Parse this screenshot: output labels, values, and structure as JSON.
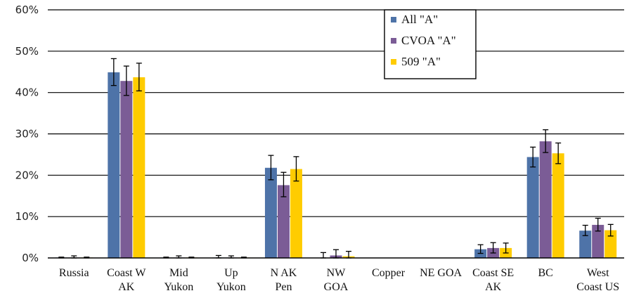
{
  "chart_data": {
    "type": "bar",
    "categories": [
      [
        "Russia"
      ],
      [
        "Coast W",
        "AK"
      ],
      [
        "Mid",
        "Yukon"
      ],
      [
        "Up",
        "Yukon"
      ],
      [
        "N AK",
        "Pen"
      ],
      [
        "NW",
        "GOA"
      ],
      [
        "Copper"
      ],
      [
        "NE GOA"
      ],
      [
        "Coast SE",
        "AK"
      ],
      [
        "BC"
      ],
      [
        "West",
        "Coast US"
      ]
    ],
    "series": [
      {
        "name": "All \"A\"",
        "color": "#4E73A8",
        "values": [
          0.1,
          44.9,
          0.1,
          0.1,
          21.8,
          0.0,
          0.0,
          0.0,
          2.1,
          24.4,
          6.6
        ],
        "err_low": [
          0.1,
          3.2,
          0.1,
          0.1,
          2.9,
          0.0,
          0.0,
          0.0,
          1.0,
          2.4,
          1.2
        ],
        "err_high": [
          0.1,
          3.3,
          0.1,
          0.5,
          3.0,
          1.3,
          0.0,
          0.0,
          1.1,
          2.4,
          1.3
        ]
      },
      {
        "name": "CVOA \"A\"",
        "color": "#7B5C96",
        "values": [
          0.1,
          42.8,
          0.1,
          0.1,
          17.6,
          0.6,
          0.0,
          0.0,
          2.4,
          28.2,
          8.0
        ],
        "err_low": [
          0.1,
          3.5,
          0.1,
          0.1,
          2.8,
          0.6,
          0.0,
          0.0,
          1.2,
          2.7,
          1.5
        ],
        "err_high": [
          0.4,
          3.6,
          0.4,
          0.4,
          3.1,
          1.4,
          0.0,
          0.0,
          1.3,
          2.8,
          1.6
        ]
      },
      {
        "name": "509 \"A\"",
        "color": "#FFCC00",
        "values": [
          0.1,
          43.7,
          0.1,
          0.1,
          21.5,
          0.4,
          0.0,
          0.0,
          2.4,
          25.3,
          6.7
        ],
        "err_low": [
          0.1,
          3.3,
          0.1,
          0.1,
          2.9,
          0.4,
          0.0,
          0.0,
          1.2,
          2.5,
          1.4
        ],
        "err_high": [
          0.1,
          3.4,
          0.1,
          0.1,
          3.0,
          1.2,
          0.0,
          0.0,
          1.2,
          2.5,
          1.4
        ]
      }
    ],
    "ylim": [
      0,
      60
    ],
    "yticks": [
      "0%",
      "10%",
      "20%",
      "30%",
      "40%",
      "50%",
      "60%"
    ],
    "title": "",
    "xlabel": "",
    "ylabel": "",
    "grid": "horizontal",
    "legend_position": "top-right"
  }
}
